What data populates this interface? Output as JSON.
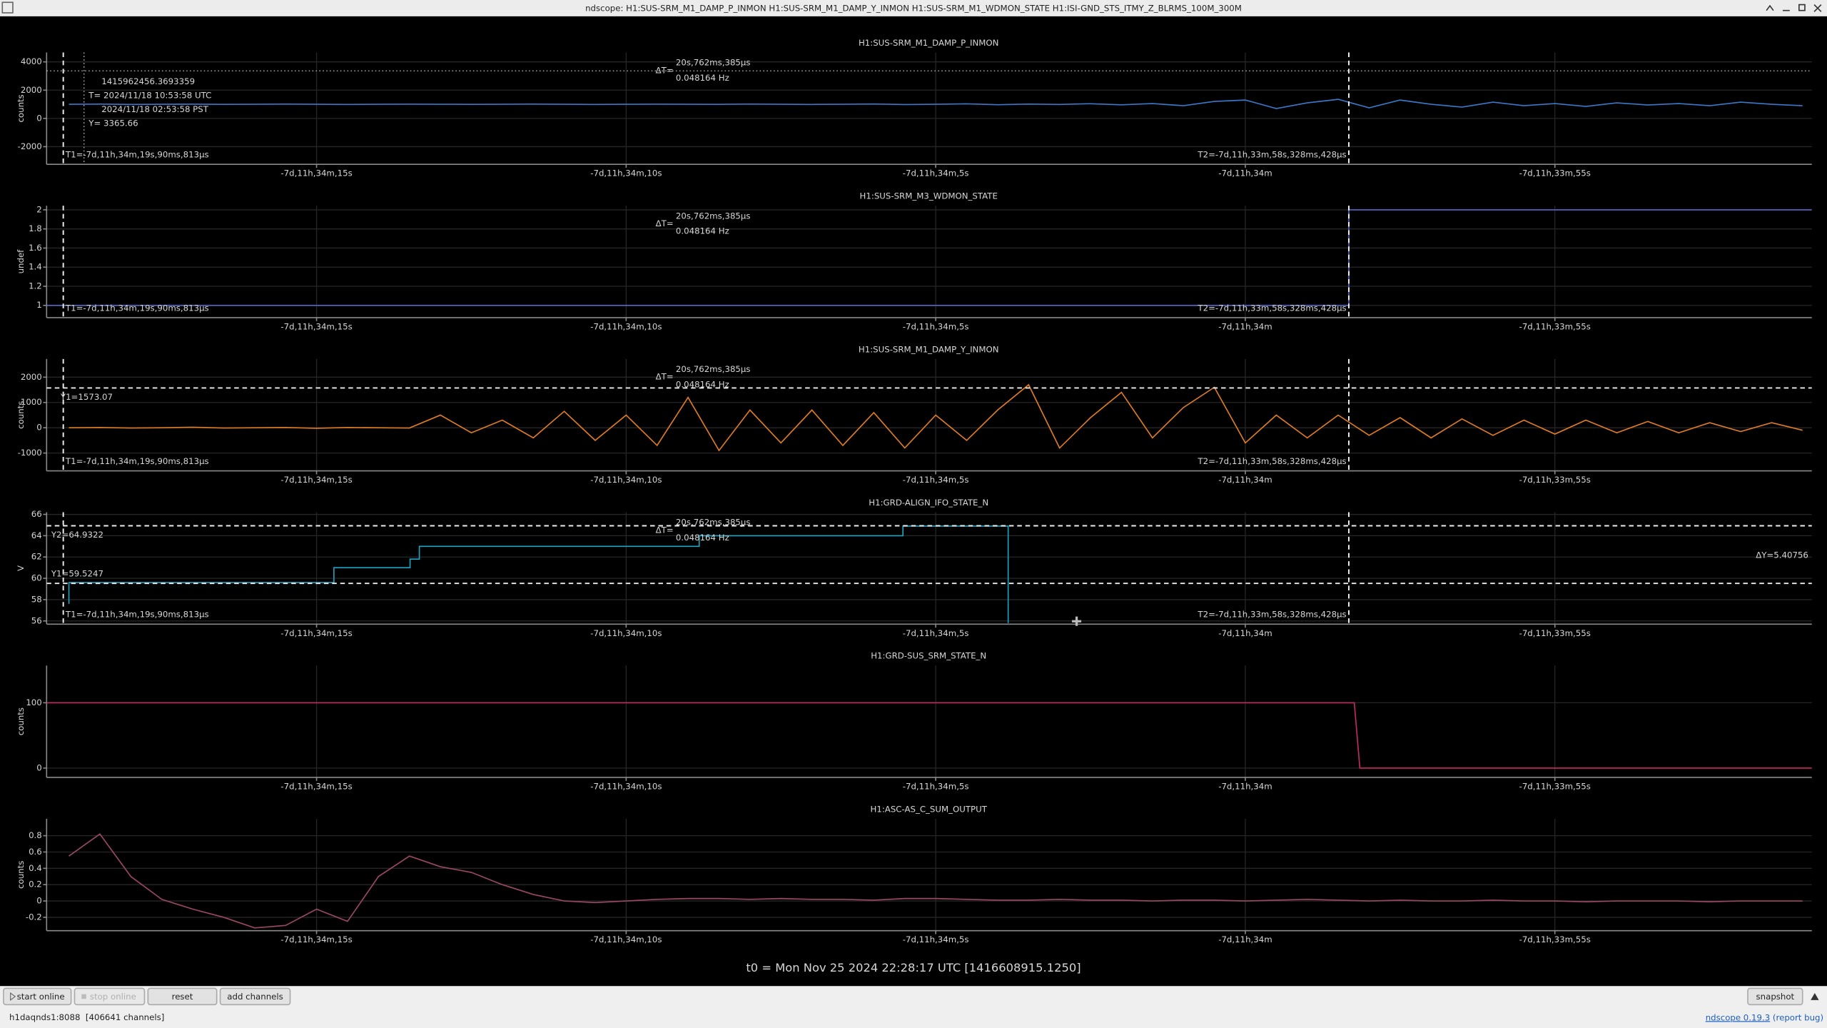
{
  "window_title": "ndscope: H1:SUS-SRM_M1_DAMP_P_INMON H1:SUS-SRM_M1_DAMP_Y_INMON H1:SUS-SRM_M1_WDMON_STATE H1:ISI-GND_STS_ITMY_Z_BLRMS_100M_300M",
  "t0": "t0 = Mon Nov 25 2024 22:28:17 UTC [1416608915.1250]",
  "xlim": [
    -646459.36,
    -646430.85
  ],
  "xticks": [
    {
      "value": -646455,
      "label": "-7d,11h,34m,15s"
    },
    {
      "value": -646450,
      "label": "-7d,11h,34m,10s"
    },
    {
      "value": -646445,
      "label": "-7d,11h,34m,5s"
    },
    {
      "value": -646440,
      "label": "-7d,11h,34m"
    },
    {
      "value": -646435,
      "label": "-7d,11h,33m,55s"
    }
  ],
  "sample_times": [
    -646459,
    -646458.5,
    -646458,
    -646457.5,
    -646457,
    -646456.5,
    -646456,
    -646455.5,
    -646455,
    -646454.5,
    -646454,
    -646453.5,
    -646453,
    -646452.5,
    -646452,
    -646451.5,
    -646451,
    -646450.5,
    -646450,
    -646449.5,
    -646449,
    -646448.5,
    -646448,
    -646447.5,
    -646447,
    -646446.5,
    -646446,
    -646445.5,
    -646445,
    -646444.5,
    -646444,
    -646443.5,
    -646443,
    -646442.5,
    -646442,
    -646441.5,
    -646441,
    -646440.5,
    -646440,
    -646439.5,
    -646439,
    -646438.5,
    -646438,
    -646437.5,
    -646437,
    -646436.5,
    -646436,
    -646435.5,
    -646435,
    -646434.5,
    -646434,
    -646433.5,
    -646433,
    -646432.5,
    -646432,
    -646431.5,
    -646431
  ],
  "cursors": {
    "t1": {
      "value": -646459.090813,
      "label": "T1=-7d,11h,34m,19s,90ms,813μs"
    },
    "t2": {
      "value": -646438.328428,
      "label": "T2=-7d,11h,33m,58s,328ms,428μs"
    },
    "delta_label": "ΔT=",
    "delta": "20s,762ms,385μs",
    "frequency": "0.048164 Hz"
  },
  "plots": [
    {
      "type": "line",
      "title": "H1:SUS-SRM_M1_DAMP_P_INMON",
      "ylabel": "counts",
      "color": "#3a78c8",
      "grid": true,
      "t_cursors": true,
      "ylim": [
        -3250,
        4667
      ],
      "yticks": [
        4000,
        2000,
        0,
        -2000
      ],
      "values": [
        1000,
        1010,
        990,
        1000,
        1005,
        995,
        1000,
        1010,
        1000,
        990,
        1000,
        1005,
        1000,
        995,
        1000,
        1010,
        1000,
        990,
        1000,
        1005,
        1000,
        995,
        1010,
        1000,
        990,
        1000,
        1020,
        980,
        1000,
        1030,
        970,
        1010,
        990,
        1040,
        960,
        1050,
        900,
        1200,
        1300,
        700,
        1100,
        1350,
        750,
        1300,
        1000,
        800,
        1150,
        900,
        1050,
        850,
        1100,
        950,
        1050,
        900,
        1150,
        1000,
        900
      ],
      "crosshair": {
        "x": -646458.7556641,
        "gps": "1415962456.3693359",
        "utc": "T= 2024/11/18 10:53:58 UTC",
        "pst": "2024/11/18 02:53:58 PST",
        "y": 3365.66,
        "y_label": "Y= 3365.66"
      }
    },
    {
      "type": "line",
      "title": "H1:SUS-SRM_M3_WDMON_STATE",
      "ylabel": "undef",
      "color": "#5a66c8",
      "grid": true,
      "t_cursors": true,
      "ylim": [
        0.872,
        2.043
      ],
      "yticks": [
        2,
        1.8,
        1.6,
        1.4,
        1.2,
        1
      ],
      "x": [
        -646459.36,
        -646438.328428,
        -646438.328428,
        -646430.85
      ],
      "values": [
        1,
        1,
        2,
        2
      ]
    },
    {
      "type": "line",
      "title": "H1:SUS-SRM_M1_DAMP_Y_INMON",
      "ylabel": "counts",
      "color": "#e07c22",
      "grid": true,
      "t_cursors": true,
      "ylim": [
        -1705,
        2719
      ],
      "yticks": [
        2000,
        1000,
        0,
        -1000
      ],
      "values": [
        0,
        10,
        -10,
        0,
        20,
        -10,
        0,
        10,
        -20,
        10,
        0,
        -10,
        500,
        -200,
        300,
        -400,
        650,
        -500,
        500,
        -700,
        1200,
        -900,
        700,
        -600,
        700,
        -700,
        600,
        -800,
        500,
        -500,
        700,
        1700,
        -800,
        400,
        1400,
        -400,
        800,
        1600,
        -600,
        500,
        -400,
        500,
        -300,
        400,
        -400,
        350,
        -300,
        300,
        -250,
        300,
        -200,
        250,
        -200,
        200,
        -150,
        200,
        -100
      ],
      "y_cursors": [
        {
          "value": 1573.07,
          "label": "Y1=1573.07"
        }
      ]
    },
    {
      "type": "line",
      "title": "H1:GRD-ALIGN_IFO_STATE_N",
      "ylabel": "V",
      "color": "#1fa3c2",
      "grid": true,
      "t_cursors": true,
      "ylim": [
        55.7,
        66.2
      ],
      "yticks": [
        66,
        64,
        62,
        60,
        58,
        56
      ],
      "x": [
        -646459,
        -646459,
        -646454.72,
        -646454.72,
        -646453.49,
        -646453.49,
        -646453.34,
        -646453.34,
        -646448.82,
        -646448.82,
        -646445.53,
        -646445.53,
        -646443.83,
        -646443.83
      ],
      "values": [
        57.6,
        59.6,
        59.6,
        61.0,
        61.0,
        61.8,
        61.8,
        63.0,
        63.0,
        64.0,
        64.0,
        64.9,
        64.9,
        55.8
      ],
      "y_cursors": [
        {
          "value": 64.9322,
          "label": "Y2=64.9322"
        },
        {
          "value": 59.5247,
          "label": "Y1=59.5247"
        }
      ],
      "dy_label": "ΔY=5.40756"
    },
    {
      "type": "line",
      "title": "H1:GRD-SUS_SRM_STATE_N",
      "ylabel": "counts",
      "color": "#c42a66",
      "grid": true,
      "t_cursors": false,
      "ylim": [
        -14.3,
        157
      ],
      "yticks": [
        100,
        0
      ],
      "x": [
        -646459.36,
        -646438.24,
        -646438.15,
        -646430.85
      ],
      "values": [
        100,
        100,
        0,
        0
      ]
    },
    {
      "type": "line",
      "title": "H1:ASC-AS_C_SUM_OUTPUT",
      "ylabel": "counts",
      "color": "#9a4864",
      "grid": true,
      "t_cursors": false,
      "ylim": [
        -0.364,
        1.007
      ],
      "yticks": [
        0.8,
        0.6,
        0.4,
        0.2,
        0,
        -0.2
      ],
      "values": [
        0.55,
        0.82,
        0.3,
        0.02,
        -0.1,
        -0.2,
        -0.33,
        -0.3,
        -0.1,
        -0.25,
        0.3,
        0.55,
        0.42,
        0.35,
        0.2,
        0.08,
        0,
        -0.02,
        0,
        0.02,
        0.03,
        0.03,
        0.02,
        0.03,
        0.02,
        0.02,
        0.01,
        0.03,
        0.03,
        0.02,
        0.01,
        0.01,
        0.02,
        0.01,
        0.01,
        0,
        0.01,
        0.01,
        0,
        0.01,
        0.02,
        0.01,
        0,
        0.01,
        0,
        0,
        0.01,
        0,
        0,
        -0.01,
        0,
        0,
        0,
        -0.01,
        0,
        0,
        0
      ]
    }
  ],
  "buttons": [
    "start online",
    "stop online",
    "reset",
    "add channels"
  ],
  "snapshot": "snapshot",
  "status": "h1daqnds1:8088  [406641 channels]",
  "version_link": "ndscope 0.19.3",
  "report_link": "(report bug)"
}
